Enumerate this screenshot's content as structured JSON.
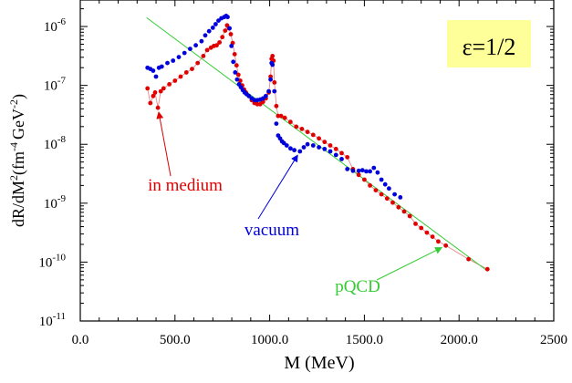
{
  "chart_data": {
    "type": "scatter",
    "title": "",
    "xlabel": "M (MeV)",
    "ylabel_parts": {
      "main": "dR/dM",
      "sup1": "2",
      "paren_open": "(fm",
      "sup2": "-4",
      "gev": "GeV",
      "sup3": "-2",
      "paren_close": ")"
    },
    "xlim": [
      0,
      2500
    ],
    "ylim_log10": [
      -11,
      -5.55
    ],
    "x_ticks": [
      {
        "value": 0,
        "label": "0.0"
      },
      {
        "value": 500,
        "label": "500.0"
      },
      {
        "value": 1000,
        "label": "1000.0"
      },
      {
        "value": 1500,
        "label": "1500.0"
      },
      {
        "value": 2000,
        "label": "2000.0"
      },
      {
        "value": 2500,
        "label": "2500"
      }
    ],
    "y_ticks": [
      {
        "exp": -6,
        "base": "10",
        "sup": "-6"
      },
      {
        "exp": -7,
        "base": "10",
        "sup": "-7"
      },
      {
        "exp": -8,
        "base": "10",
        "sup": "-8"
      },
      {
        "exp": -9,
        "base": "10",
        "sup": "-9"
      },
      {
        "exp": -10,
        "base": "10",
        "sup": "-10"
      },
      {
        "exp": -11,
        "base": "10",
        "sup": "-11"
      }
    ],
    "epsilon_label": "ε=1/2",
    "series": [
      {
        "name": "in medium",
        "color": "#e00000",
        "connected": true,
        "points": [
          [
            355,
            -7.05
          ],
          [
            370,
            -7.3
          ],
          [
            385,
            -7.18
          ],
          [
            395,
            -7.12
          ],
          [
            410,
            -7.38
          ],
          [
            425,
            -7.1
          ],
          [
            440,
            -7.05
          ],
          [
            470,
            -6.98
          ],
          [
            500,
            -6.92
          ],
          [
            530,
            -6.85
          ],
          [
            560,
            -6.78
          ],
          [
            590,
            -6.72
          ],
          [
            620,
            -6.62
          ],
          [
            650,
            -6.5
          ],
          [
            670,
            -6.4
          ],
          [
            690,
            -6.36
          ],
          [
            705,
            -6.33
          ],
          [
            720,
            -6.32
          ],
          [
            735,
            -6.27
          ],
          [
            750,
            -6.18
          ],
          [
            765,
            -6.07
          ],
          [
            775,
            -5.98
          ],
          [
            785,
            -6.03
          ],
          [
            795,
            -6.13
          ],
          [
            805,
            -6.28
          ],
          [
            815,
            -6.47
          ],
          [
            825,
            -6.66
          ],
          [
            835,
            -6.82
          ],
          [
            845,
            -6.92
          ],
          [
            855,
            -7.0
          ],
          [
            865,
            -7.07
          ],
          [
            875,
            -7.12
          ],
          [
            890,
            -7.18
          ],
          [
            905,
            -7.25
          ],
          [
            920,
            -7.3
          ],
          [
            935,
            -7.32
          ],
          [
            950,
            -7.32
          ],
          [
            965,
            -7.28
          ],
          [
            980,
            -7.22
          ],
          [
            995,
            -7.12
          ],
          [
            1005,
            -6.85
          ],
          [
            1010,
            -6.55
          ],
          [
            1015,
            -6.5
          ],
          [
            1020,
            -6.58
          ],
          [
            1025,
            -6.95
          ],
          [
            1035,
            -7.35
          ],
          [
            1045,
            -7.52
          ],
          [
            1060,
            -7.52
          ],
          [
            1080,
            -7.55
          ],
          [
            1110,
            -7.62
          ],
          [
            1140,
            -7.7
          ],
          [
            1170,
            -7.74
          ],
          [
            1200,
            -7.79
          ],
          [
            1230,
            -7.84
          ],
          [
            1260,
            -7.9
          ],
          [
            1290,
            -7.96
          ],
          [
            1320,
            -8.02
          ],
          [
            1350,
            -8.08
          ],
          [
            1380,
            -8.15
          ],
          [
            1410,
            -8.22
          ],
          [
            1440,
            -8.42
          ],
          [
            1470,
            -8.52
          ],
          [
            1500,
            -8.6
          ],
          [
            1530,
            -8.7
          ],
          [
            1560,
            -8.78
          ],
          [
            1590,
            -8.85
          ],
          [
            1620,
            -8.92
          ],
          [
            1650,
            -8.99
          ],
          [
            1680,
            -9.07
          ],
          [
            1710,
            -9.14
          ],
          [
            1740,
            -9.22
          ],
          [
            1770,
            -9.35
          ],
          [
            1800,
            -9.42
          ],
          [
            1830,
            -9.5
          ],
          [
            1860,
            -9.57
          ],
          [
            1890,
            -9.65
          ],
          [
            1930,
            -9.72
          ],
          [
            2050,
            -9.95
          ],
          [
            2150,
            -10.12
          ]
        ]
      },
      {
        "name": "vacuum",
        "color": "#0000dd",
        "connected": false,
        "points": [
          [
            355,
            -6.7
          ],
          [
            370,
            -6.72
          ],
          [
            385,
            -6.75
          ],
          [
            400,
            -6.85
          ],
          [
            415,
            -6.7
          ],
          [
            430,
            -6.68
          ],
          [
            460,
            -6.62
          ],
          [
            490,
            -6.58
          ],
          [
            520,
            -6.52
          ],
          [
            550,
            -6.45
          ],
          [
            580,
            -6.38
          ],
          [
            610,
            -6.32
          ],
          [
            640,
            -6.25
          ],
          [
            660,
            -6.15
          ],
          [
            680,
            -6.08
          ],
          [
            700,
            -6.02
          ],
          [
            715,
            -5.96
          ],
          [
            730,
            -5.9
          ],
          [
            745,
            -5.86
          ],
          [
            760,
            -5.84
          ],
          [
            770,
            -5.82
          ],
          [
            778,
            -5.84
          ],
          [
            788,
            -6.03
          ],
          [
            798,
            -6.33
          ],
          [
            808,
            -6.6
          ],
          [
            818,
            -6.78
          ],
          [
            828,
            -6.9
          ],
          [
            838,
            -6.98
          ],
          [
            848,
            -7.03
          ],
          [
            858,
            -7.08
          ],
          [
            868,
            -7.12
          ],
          [
            878,
            -7.15
          ],
          [
            890,
            -7.18
          ],
          [
            905,
            -7.22
          ],
          [
            920,
            -7.25
          ],
          [
            935,
            -7.25
          ],
          [
            950,
            -7.24
          ],
          [
            965,
            -7.22
          ],
          [
            980,
            -7.18
          ],
          [
            995,
            -7.1
          ],
          [
            1005,
            -6.9
          ],
          [
            1010,
            -6.62
          ],
          [
            1015,
            -6.65
          ],
          [
            1025,
            -7.1
          ],
          [
            1035,
            -7.65
          ],
          [
            1045,
            -7.85
          ],
          [
            1055,
            -7.9
          ],
          [
            1065,
            -7.95
          ],
          [
            1075,
            -7.98
          ],
          [
            1090,
            -8.02
          ],
          [
            1110,
            -8.07
          ],
          [
            1130,
            -8.1
          ],
          [
            1160,
            -8.12
          ],
          [
            1180,
            -8.05
          ],
          [
            1200,
            -8.0
          ],
          [
            1230,
            -8.02
          ],
          [
            1260,
            -8.05
          ],
          [
            1290,
            -8.08
          ],
          [
            1320,
            -8.12
          ],
          [
            1350,
            -8.18
          ],
          [
            1380,
            -8.25
          ],
          [
            1410,
            -8.42
          ],
          [
            1440,
            -8.45
          ],
          [
            1470,
            -8.45
          ],
          [
            1490,
            -8.44
          ],
          [
            1510,
            -8.46
          ],
          [
            1530,
            -8.46
          ],
          [
            1550,
            -8.4
          ],
          [
            1570,
            -8.48
          ],
          [
            1590,
            -8.6
          ],
          [
            1610,
            -8.68
          ],
          [
            1630,
            -8.75
          ],
          [
            1660,
            -8.85
          ],
          [
            1690,
            -8.9
          ]
        ]
      },
      {
        "name": "pQCD",
        "color": "#33cc33",
        "connected": true,
        "points": [
          [
            350,
            -5.85
          ],
          [
            2150,
            -10.15
          ]
        ]
      }
    ],
    "annotations": [
      {
        "text": "in medium",
        "color": "#e00000",
        "arrow_to": [
          410,
          -7.38
        ]
      },
      {
        "text": "vacuum",
        "color": "#0000dd",
        "arrow_to": [
          1160,
          -8.12
        ]
      },
      {
        "text": "pQCD",
        "color": "#33cc33",
        "arrow_to": [
          1930,
          -9.72
        ]
      }
    ]
  }
}
